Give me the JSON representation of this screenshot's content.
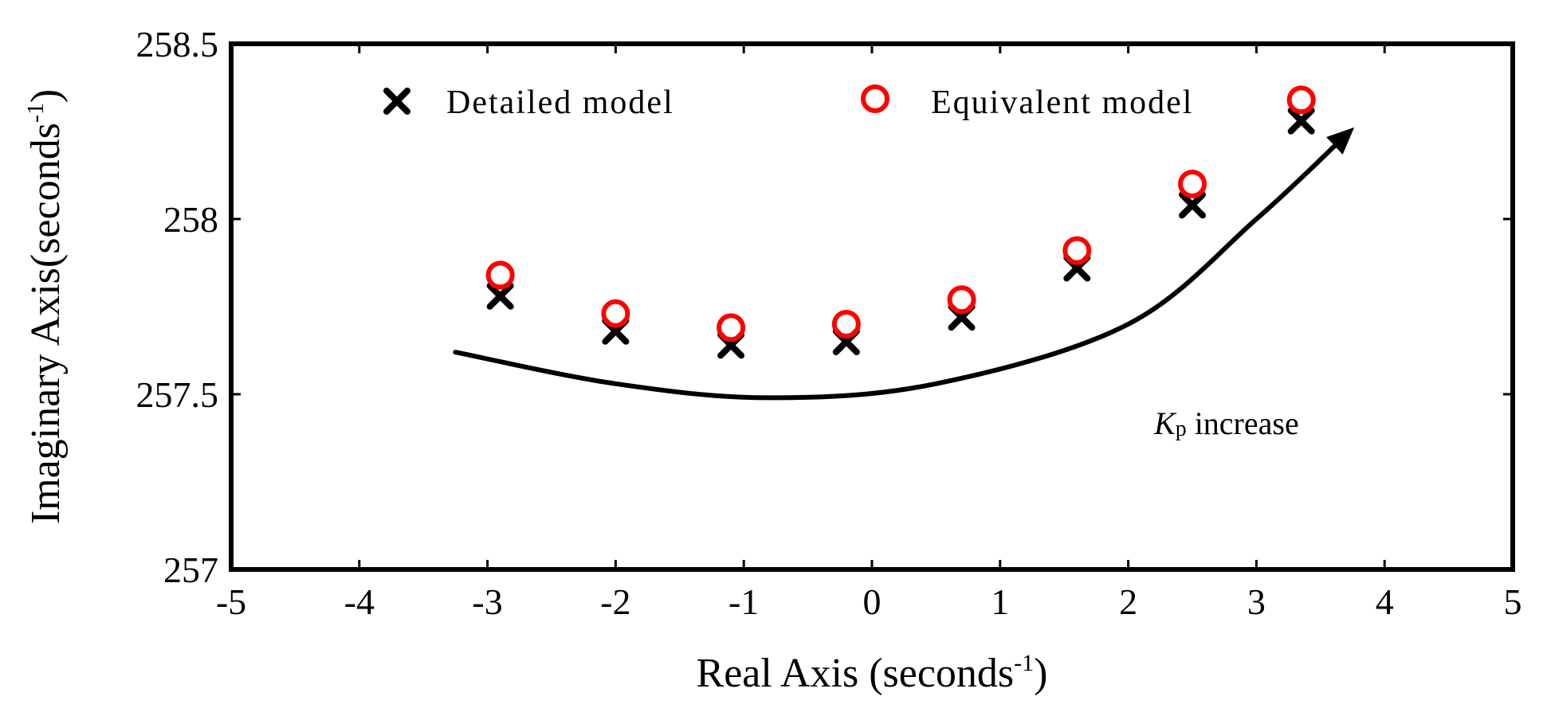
{
  "chart_data": {
    "type": "scatter",
    "xlabel": "Real Axis (seconds",
    "xlabel_sup": "-1",
    "xlabel_end": ")",
    "ylabel": "Imaginary Axis(seconds",
    "ylabel_sup": "-1",
    "ylabel_end": ")",
    "xlim": [
      -5,
      5
    ],
    "ylim": [
      257,
      258.5
    ],
    "xticks": [
      "-5",
      "-4",
      "-3",
      "-2",
      "-1",
      "0",
      "1",
      "2",
      "3",
      "4",
      "5"
    ],
    "xtick_values": [
      -5,
      -4,
      -3,
      -2,
      -1,
      0,
      1,
      2,
      3,
      4,
      5
    ],
    "yticks": [
      "257",
      "257.5",
      "258",
      "258.5"
    ],
    "ytick_values": [
      257,
      257.5,
      258,
      258.5
    ],
    "grid": false,
    "legend_position": "top",
    "series": [
      {
        "name": "Detailed model",
        "marker": "x",
        "color": "#000000",
        "x": [
          -2.9,
          -2.0,
          -1.1,
          -0.2,
          0.7,
          1.6,
          2.5,
          3.35
        ],
        "y": [
          257.78,
          257.68,
          257.64,
          257.65,
          257.72,
          257.86,
          258.04,
          258.28
        ]
      },
      {
        "name": "Equivalent model",
        "marker": "o",
        "color": "#ff0000",
        "x": [
          -2.9,
          -2.0,
          -1.1,
          -0.2,
          0.7,
          1.6,
          2.5,
          3.35
        ],
        "y": [
          257.84,
          257.73,
          257.69,
          257.7,
          257.77,
          257.91,
          258.1,
          258.34
        ]
      }
    ],
    "annotation": {
      "symbol": "K",
      "subscript": "p",
      "text": " increase",
      "x": 2.5,
      "y": 257.43
    },
    "arrow_path": [
      [
        -3.25,
        257.62
      ],
      [
        -2.0,
        257.53
      ],
      [
        -0.8,
        257.49
      ],
      [
        0.5,
        257.53
      ],
      [
        2.0,
        257.7
      ],
      [
        3.0,
        258.0
      ],
      [
        3.7,
        258.24
      ]
    ]
  }
}
